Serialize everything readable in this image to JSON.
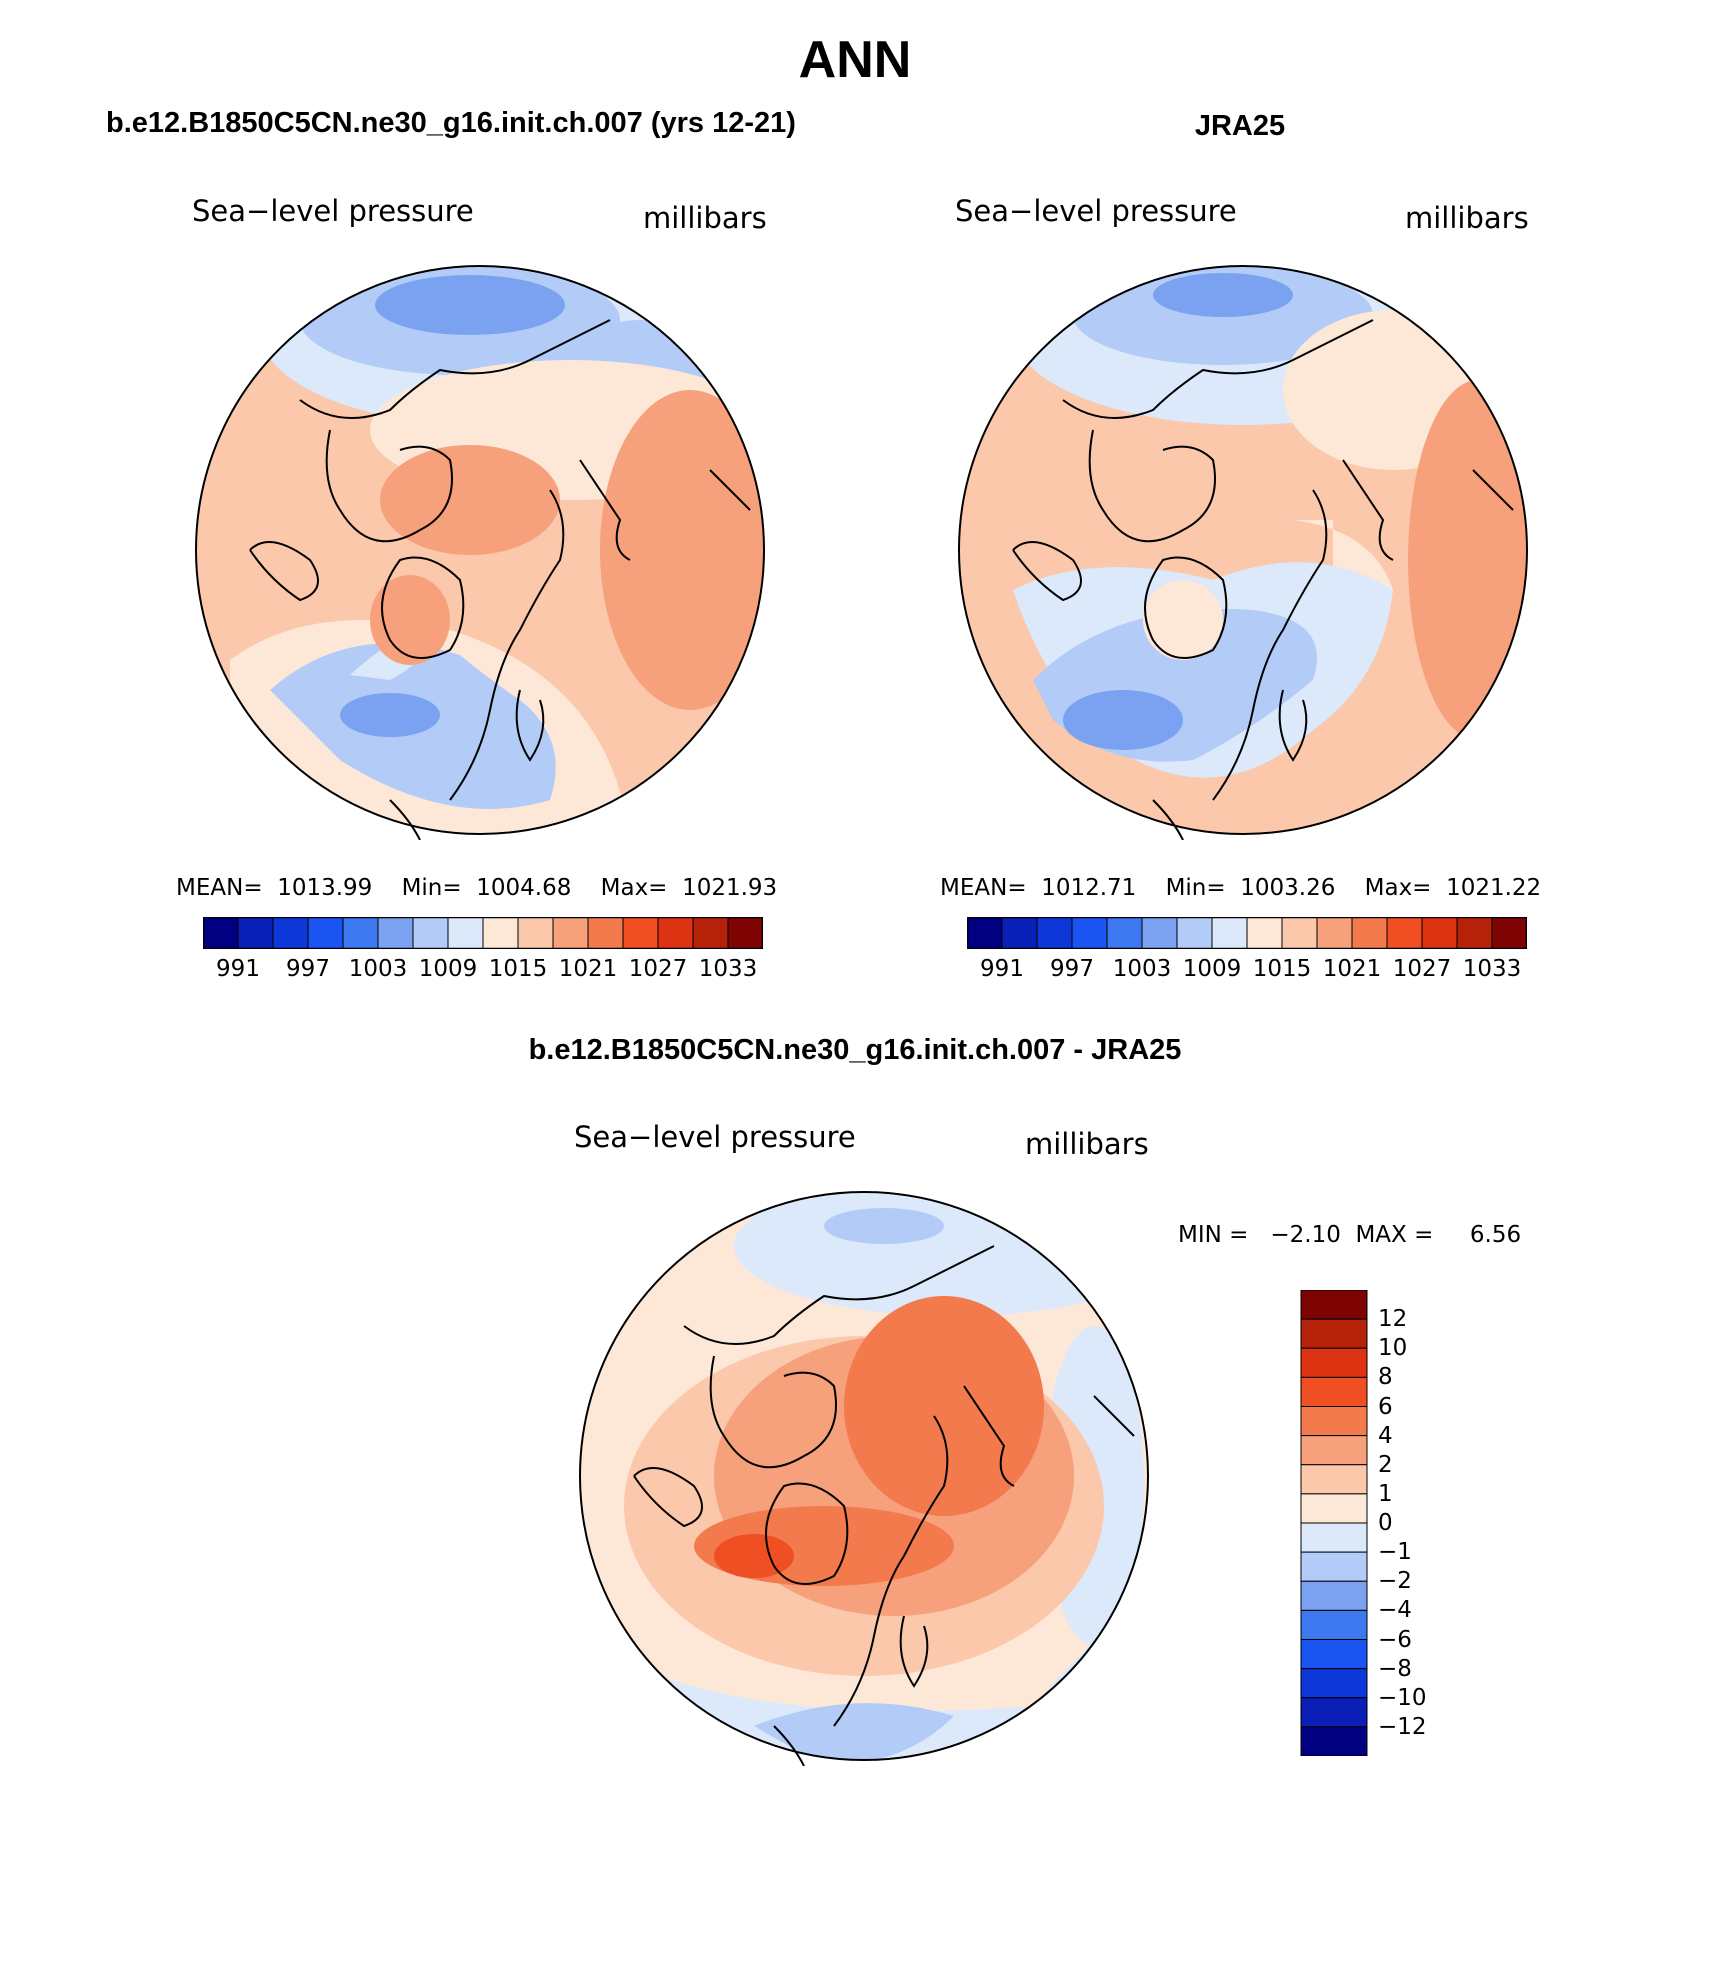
{
  "main_title": "ANN",
  "colors": {
    "abs": [
      "#000080",
      "#0a1fb5",
      "#0e37d8",
      "#1a55f2",
      "#3d78f0",
      "#7aa2f0",
      "#b2cbf7",
      "#dce9fb",
      "#fde8d7",
      "#fbc8ab",
      "#f6a07c",
      "#f27a4c",
      "#f04f24",
      "#dc3412",
      "#b52209",
      "#7e0404"
    ],
    "diff": [
      "#000080",
      "#0a1fb5",
      "#0e37d8",
      "#1a55f2",
      "#3d78f0",
      "#7aa2f0",
      "#b2cbf7",
      "#dce9fb",
      "#fde8d7",
      "#fbc8ab",
      "#f6a07c",
      "#f27a4c",
      "#f04f24",
      "#dc3412",
      "#b52209",
      "#7e0404"
    ]
  },
  "panels": {
    "model": {
      "header": "b.e12.B1850C5CN.ne30_g16.init.ch.007 (yrs 12-21)",
      "variable": "Sea−level pressure",
      "units": "millibars",
      "stats": "MEAN=  1013.99    Min=  1004.68    Max=  1021.93",
      "ticks": [
        "991",
        "997",
        "1003",
        "1009",
        "1015",
        "1021",
        "1027",
        "1033"
      ]
    },
    "obs": {
      "header": "JRA25",
      "variable": "Sea−level pressure",
      "units": "millibars",
      "stats": "MEAN=  1012.71    Min=  1003.26    Max=  1021.22",
      "ticks": [
        "991",
        "997",
        "1003",
        "1009",
        "1015",
        "1021",
        "1027",
        "1033"
      ]
    },
    "diff": {
      "header": "b.e12.B1850C5CN.ne30_g16.init.ch.007 - JRA25",
      "variable": "Sea−level pressure",
      "units": "millibars",
      "stats": "MIN =   −2.10  MAX =     6.56",
      "ticks": [
        "12",
        "10",
        "8",
        "6",
        "4",
        "2",
        "1",
        "0",
        "−1",
        "−2",
        "−4",
        "−6",
        "−8",
        "−10",
        "−12"
      ]
    }
  }
}
